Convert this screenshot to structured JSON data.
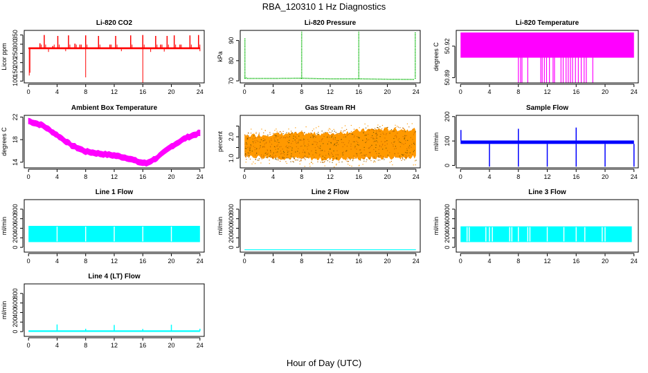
{
  "figure": {
    "title": "RBA_120310  1 Hz Diagnostics",
    "xlabel": "Hour of Day (UTC)"
  },
  "chart_data": [
    {
      "type": "line",
      "title": "Li-820 CO2",
      "ylabel": "Licor ppm",
      "color": "#ff0000",
      "xlim": [
        -0.6,
        24.6
      ],
      "ylim": [
        90,
        375
      ],
      "xticks": [
        0,
        4,
        8,
        12,
        16,
        20,
        24
      ],
      "yticks": [
        100,
        150,
        200,
        250,
        300,
        350
      ],
      "baseline": 278,
      "band": [
        273,
        283
      ],
      "spikes_up": [
        [
          1.6,
          305
        ],
        [
          2.2,
          350
        ],
        [
          3.4,
          290
        ],
        [
          4.1,
          345
        ],
        [
          5.6,
          348
        ],
        [
          6.5,
          303
        ],
        [
          7.2,
          298
        ],
        [
          8.0,
          348
        ],
        [
          9.8,
          345
        ],
        [
          11.4,
          298
        ],
        [
          12.2,
          345
        ],
        [
          14.3,
          348
        ],
        [
          16.0,
          350
        ],
        [
          17.8,
          345
        ],
        [
          18.5,
          298
        ],
        [
          19.4,
          345
        ],
        [
          20.4,
          348
        ],
        [
          21.2,
          298
        ],
        [
          22.6,
          348
        ],
        [
          23.8,
          350
        ]
      ],
      "spikes_down": [
        [
          0.1,
          130
        ],
        [
          0.2,
          145
        ],
        [
          2.8,
          258
        ],
        [
          5.2,
          262
        ],
        [
          8.0,
          120
        ],
        [
          13.0,
          262
        ],
        [
          16.0,
          90
        ],
        [
          17.1,
          258
        ],
        [
          19.0,
          260
        ],
        [
          24.0,
          262
        ]
      ]
    },
    {
      "type": "line",
      "title": "Li-820 Pressure",
      "ylabel": "kPa",
      "color": "#00b400",
      "xlim": [
        -0.6,
        24.6
      ],
      "ylim": [
        69,
        95
      ],
      "xticks": [
        0,
        4,
        8,
        12,
        16,
        20,
        24
      ],
      "yticks": [
        70,
        80,
        90
      ],
      "baseline_points": [
        [
          0,
          72
        ],
        [
          0.3,
          71.2
        ],
        [
          4,
          71.2
        ],
        [
          8,
          71.3
        ],
        [
          12,
          71
        ],
        [
          16,
          71
        ],
        [
          20,
          70.8
        ],
        [
          23.8,
          70.7
        ]
      ],
      "spikes": [
        [
          0.05,
          91
        ],
        [
          8.0,
          94.5
        ],
        [
          16.0,
          94.5
        ],
        [
          23.9,
          94
        ]
      ]
    },
    {
      "type": "line",
      "title": "Li-820 Temperature",
      "ylabel": "degrees C",
      "color": "#ff00ff",
      "xlim": [
        -0.6,
        24.6
      ],
      "ylim": [
        50.885,
        50.935
      ],
      "xticks": [
        0,
        4,
        8,
        12,
        16,
        20,
        24
      ],
      "yticks": [
        50.89,
        50.92
      ],
      "ytick_labels": [
        "50.89",
        "50.92"
      ],
      "extra_ytick_labels": [
        "50.89",
        "50.92"
      ],
      "band": [
        50.909,
        50.933
      ],
      "drops_to": 50.885,
      "drop_hours": [
        8.0,
        8.3,
        8.5,
        9.3,
        11.1,
        11.3,
        11.6,
        11.9,
        12.3,
        12.8,
        13.0,
        13.9,
        14.2,
        14.6,
        14.9,
        15.2,
        15.5,
        15.9,
        16.3,
        16.7,
        17.1,
        17.4,
        18.3
      ]
    },
    {
      "type": "line",
      "title": "Ambient Box Temperature",
      "ylabel": "degrees C",
      "color": "#ff00ff",
      "xlim": [
        -0.6,
        24.6
      ],
      "ylim": [
        13,
        22.3
      ],
      "xticks": [
        0,
        4,
        8,
        12,
        16,
        20,
        24
      ],
      "yticks": [
        14,
        18,
        22
      ],
      "points": [
        [
          0,
          21.3
        ],
        [
          2,
          20.5
        ],
        [
          4,
          18.8
        ],
        [
          6,
          17.0
        ],
        [
          8,
          15.9
        ],
        [
          10,
          15.5
        ],
        [
          12,
          15.2
        ],
        [
          14,
          14.7
        ],
        [
          15.5,
          14.0
        ],
        [
          16.5,
          13.8
        ],
        [
          18,
          14.8
        ],
        [
          20,
          16.8
        ],
        [
          22,
          18.3
        ],
        [
          24,
          19.2
        ]
      ],
      "band_width": 0.5
    },
    {
      "type": "scatter",
      "title": "Gas Stream RH",
      "ylabel": "percent",
      "color": "#ff9900",
      "xlim": [
        -0.6,
        24.6
      ],
      "ylim": [
        0.55,
        3.0
      ],
      "xticks": [
        0,
        4,
        8,
        12,
        16,
        20,
        24
      ],
      "yticks": [
        1.0,
        1.5,
        2.0,
        2.5
      ],
      "ytick_labels": [
        "1.0",
        "",
        "2.0",
        ""
      ],
      "low_points": [
        [
          0,
          0.95
        ],
        [
          6,
          0.85
        ],
        [
          12,
          0.8
        ],
        [
          18,
          0.85
        ],
        [
          24,
          0.9
        ]
      ],
      "high_points": [
        [
          0,
          2.2
        ],
        [
          6,
          2.3
        ],
        [
          12,
          2.3
        ],
        [
          18,
          2.5
        ],
        [
          24,
          2.5
        ]
      ]
    },
    {
      "type": "line",
      "title": "Sample Flow",
      "ylabel": "ml/min",
      "color": "#0000ff",
      "xlim": [
        -0.6,
        24.6
      ],
      "ylim": [
        -10,
        205
      ],
      "xticks": [
        0,
        4,
        8,
        12,
        16,
        20,
        24
      ],
      "yticks": [
        0,
        100,
        200
      ],
      "band": [
        88,
        102
      ],
      "spikes_up": [
        [
          0.05,
          145
        ],
        [
          8.0,
          150
        ],
        [
          16.0,
          155
        ]
      ],
      "spikes_down": [
        [
          4.0,
          -5
        ],
        [
          8.0,
          -5
        ],
        [
          12.0,
          -5
        ],
        [
          16.0,
          -5
        ],
        [
          20.0,
          -5
        ],
        [
          24.0,
          -5
        ]
      ]
    },
    {
      "type": "line",
      "title": "Line 1 Flow",
      "ylabel": "ml/min",
      "color": "#00ffff",
      "xlim": [
        -0.6,
        24.6
      ],
      "ylim": [
        -100,
        1000
      ],
      "xticks": [
        0,
        4,
        8,
        12,
        16,
        20,
        24
      ],
      "yticks": [
        0,
        200,
        400,
        600,
        800
      ],
      "band": [
        110,
        450
      ],
      "gaps": [
        4.0,
        8.0,
        12.0,
        16.0,
        20.0
      ],
      "x_end": 24.0
    },
    {
      "type": "line",
      "title": "Line 2 Flow",
      "ylabel": "ml/min",
      "color": "#00ffff",
      "xlim": [
        -0.6,
        24.6
      ],
      "ylim": [
        -100,
        1000
      ],
      "xticks": [
        0,
        4,
        8,
        12,
        16,
        20,
        24
      ],
      "yticks": [
        0,
        200,
        400,
        600,
        800
      ],
      "level": -50
    },
    {
      "type": "line",
      "title": "Line 3 Flow",
      "ylabel": "ml/min",
      "color": "#00ffff",
      "xlim": [
        -0.6,
        24.6
      ],
      "ylim": [
        -100,
        1000
      ],
      "xticks": [
        0,
        4,
        8,
        12,
        16,
        20,
        24
      ],
      "yticks": [
        0,
        200,
        400,
        600,
        800
      ],
      "band": [
        110,
        440
      ],
      "gaps": [
        0.9,
        1.2,
        3.5,
        4.0,
        4.4,
        6.8,
        7.1,
        8.0,
        9.3,
        9.6,
        12.0,
        14.3,
        16.0,
        17.2,
        19.6,
        20.0
      ],
      "x_end": 23.7
    },
    {
      "type": "line",
      "title": "Line 4 (LT) Flow",
      "ylabel": "ml/min",
      "color": "#00ffff",
      "xlim": [
        -0.6,
        24.6
      ],
      "ylim": [
        -100,
        1000
      ],
      "xticks": [
        0,
        4,
        8,
        12,
        16,
        20,
        24
      ],
      "yticks": [
        0,
        200,
        400,
        600,
        800
      ],
      "level": 10,
      "spikes": [
        [
          4.0,
          150
        ],
        [
          8.0,
          60
        ],
        [
          12.0,
          140
        ],
        [
          16.0,
          55
        ],
        [
          20.0,
          145
        ],
        [
          24.0,
          60
        ]
      ]
    }
  ]
}
